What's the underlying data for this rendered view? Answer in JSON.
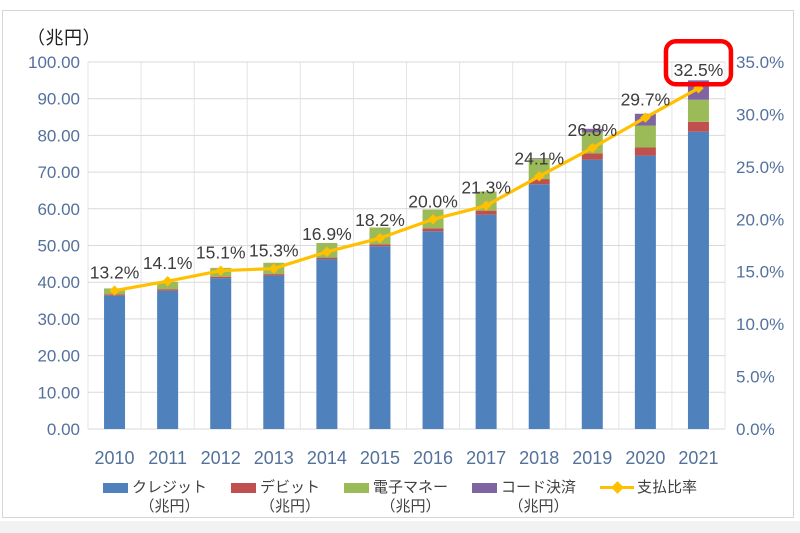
{
  "chart_data": {
    "type": "bar",
    "subtype": "stacked-bar-with-line-combo",
    "left_axis_title": "（兆円）",
    "categories": [
      "2010",
      "2011",
      "2012",
      "2013",
      "2014",
      "2015",
      "2016",
      "2017",
      "2018",
      "2019",
      "2020",
      "2021"
    ],
    "bar_series": [
      {
        "key": "credit",
        "name": "クレジット",
        "unit": "（兆円）",
        "color": "#4f81bd",
        "values": [
          36.3,
          37.7,
          41.1,
          41.8,
          46.3,
          49.8,
          53.9,
          58.4,
          66.7,
          73.4,
          74.5,
          81.0
        ]
      },
      {
        "key": "debit",
        "name": "デビット",
        "unit": "（兆円）",
        "color": "#c0504d",
        "values": [
          0.4,
          0.4,
          0.4,
          0.4,
          0.4,
          0.5,
          0.8,
          1.1,
          1.4,
          1.7,
          2.2,
          2.7
        ]
      },
      {
        "key": "emoney",
        "name": "電子マネー",
        "unit": "（兆円）",
        "color": "#9bbb59",
        "values": [
          1.6,
          2.0,
          2.4,
          3.1,
          4.0,
          4.6,
          5.1,
          5.2,
          5.5,
          5.7,
          6.0,
          6.0
        ]
      },
      {
        "key": "code",
        "name": "コード決済",
        "unit": "（兆円）",
        "color": "#8064a2",
        "values": [
          0,
          0,
          0,
          0,
          0,
          0,
          0,
          0,
          0.2,
          1.0,
          3.2,
          5.3
        ]
      }
    ],
    "line_series": {
      "key": "ratio",
      "name": "支払比率",
      "color": "#ffc000",
      "values": [
        13.2,
        14.1,
        15.1,
        15.3,
        16.9,
        18.2,
        20.0,
        21.3,
        24.1,
        26.8,
        29.7,
        32.5
      ],
      "labels": [
        "13.2%",
        "14.1%",
        "15.1%",
        "15.3%",
        "16.9%",
        "18.2%",
        "20.0%",
        "21.3%",
        "24.1%",
        "26.8%",
        "29.7%",
        "32.5%"
      ]
    },
    "left_axis": {
      "min": 0,
      "max": 100,
      "step": 10,
      "tick_labels": [
        "100.00",
        "90.00",
        "80.00",
        "70.00",
        "60.00",
        "50.00",
        "40.00",
        "30.00",
        "20.00",
        "10.00",
        "0.00"
      ]
    },
    "right_axis": {
      "min": 0,
      "max": 35,
      "step": 5,
      "tick_labels": [
        "35.0%",
        "30.0%",
        "25.0%",
        "20.0%",
        "15.0%",
        "10.0%",
        "5.0%",
        "0.0%"
      ]
    },
    "highlight": {
      "target_label": "32.5%",
      "box_color": "#ff0000"
    },
    "grid": true,
    "legend_position": "bottom",
    "colors": {
      "axis_text": "#54719c",
      "gridline": "#d9d9d9",
      "vertical_gridline": "#e4e4e4",
      "data_label": "#3d3d3d",
      "frame_border": "#d6d6d6",
      "background": "#ffffff"
    }
  }
}
